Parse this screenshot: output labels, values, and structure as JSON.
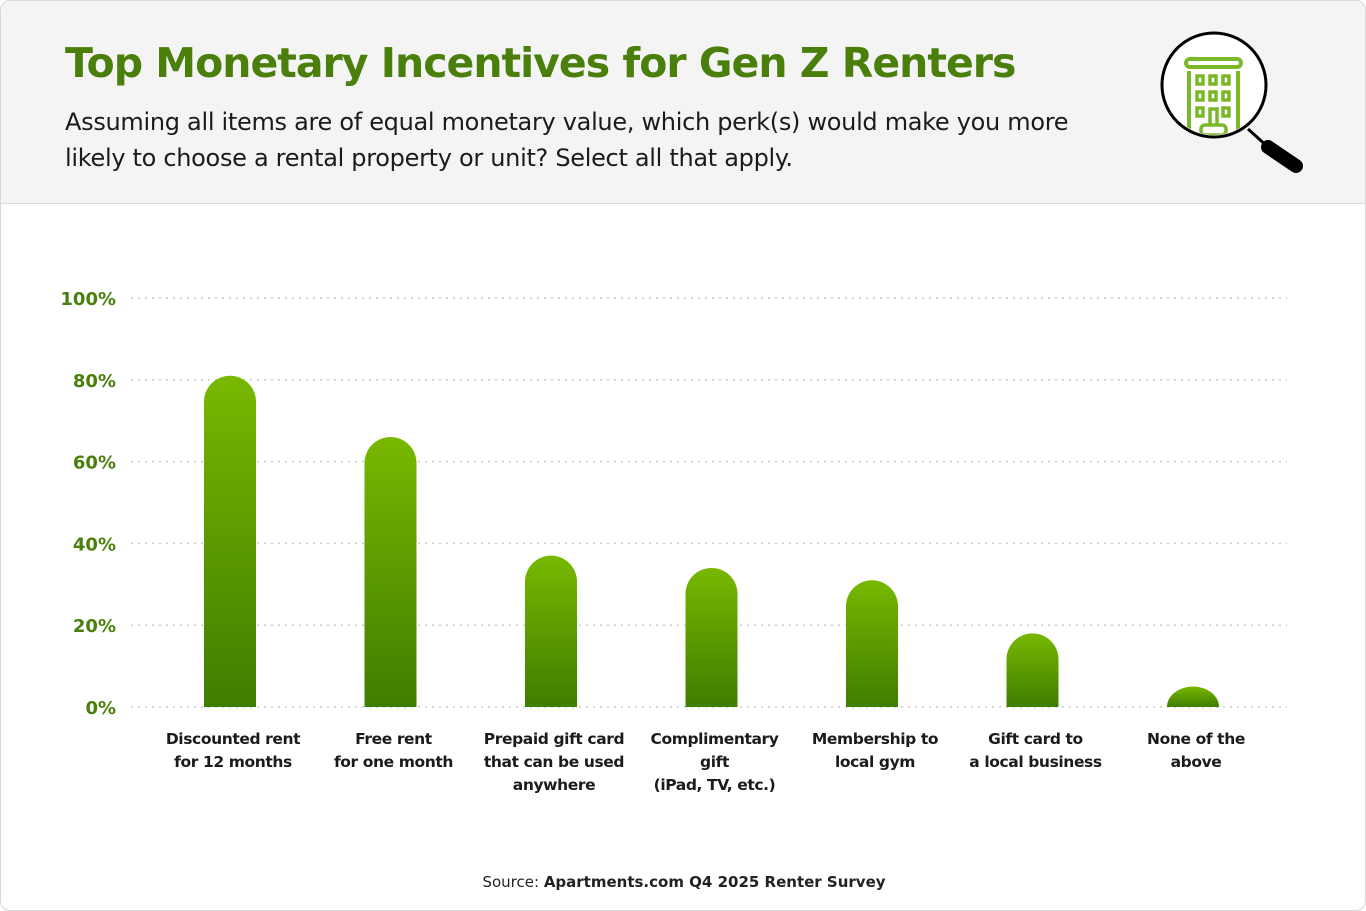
{
  "header": {
    "title": "Top Monetary Incentives for Gen Z Renters",
    "subtitle": "Assuming all items are of equal monetary value, which perk(s) would make you more likely to choose a rental property or unit? Select all that apply.",
    "icon": "building-magnifier-icon"
  },
  "colors": {
    "title": "#4a7f0c",
    "bar_top": "#78b800",
    "bar_bottom": "#3f7d00",
    "axis_label": "#4a7f0c",
    "grid": "#c8c8c8"
  },
  "chart_data": {
    "type": "bar",
    "title": "Top Monetary Incentives for Gen Z Renters",
    "categories": [
      [
        "Discounted rent",
        "for 12 months"
      ],
      [
        "Free rent",
        "for one month"
      ],
      [
        "Prepaid gift card",
        "that can be used",
        "anywhere"
      ],
      [
        "Complimentary",
        "gift",
        "(iPad, TV, etc.)"
      ],
      [
        "Membership to",
        "local gym"
      ],
      [
        "Gift card to",
        "a local business"
      ],
      [
        "None of the",
        "above"
      ]
    ],
    "values": [
      81,
      66,
      37,
      34,
      31,
      18,
      5
    ],
    "unit": "%",
    "ylim": [
      0,
      100
    ],
    "yticks": [
      "0%",
      "20%",
      "40%",
      "60%",
      "80%",
      "100%"
    ],
    "grid": true,
    "grid_style": "dotted"
  },
  "source": {
    "label": "Source:",
    "text": "Apartments.com Q4 2025 Renter Survey"
  }
}
